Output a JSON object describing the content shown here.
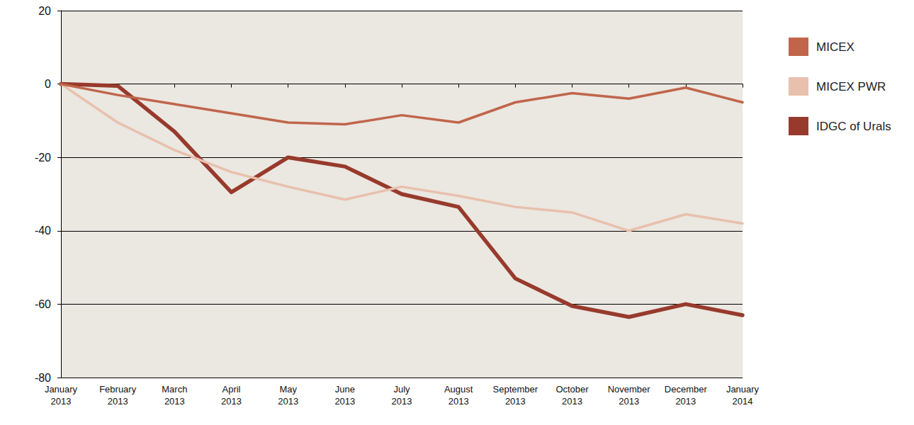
{
  "chart_data": {
    "type": "line",
    "categories": [
      "January 2013",
      "February 2013",
      "March 2013",
      "April 2013",
      "May 2013",
      "June 2013",
      "July 2013",
      "August 2013",
      "September 2013",
      "October 2013",
      "November 2013",
      "December 2013",
      "January 2014"
    ],
    "series": [
      {
        "name": "MICEX",
        "color": "#c0654a",
        "values": [
          0,
          -3,
          -5.5,
          -8,
          -10.5,
          -11,
          -8.5,
          -10.5,
          -5,
          -2.5,
          -4,
          -1,
          -5
        ]
      },
      {
        "name": "MICEX PWR",
        "color": "#e8c0ad",
        "values": [
          0,
          -10.5,
          -18,
          -24,
          -28,
          -31.5,
          -28,
          -30.5,
          -33.5,
          -35,
          -40,
          -35.5,
          -38
        ]
      },
      {
        "name": "IDGC of Urals",
        "color": "#973a2c",
        "values": [
          0,
          -0.5,
          -13,
          -29.5,
          -20,
          -22.5,
          -30,
          -33.5,
          -53,
          -60.5,
          -63.5,
          -60,
          -63
        ]
      }
    ],
    "ylim": [
      -80,
      20
    ],
    "yticks": [
      -80,
      -60,
      -40,
      -20,
      0,
      20
    ],
    "grid": true,
    "legend": "right"
  }
}
